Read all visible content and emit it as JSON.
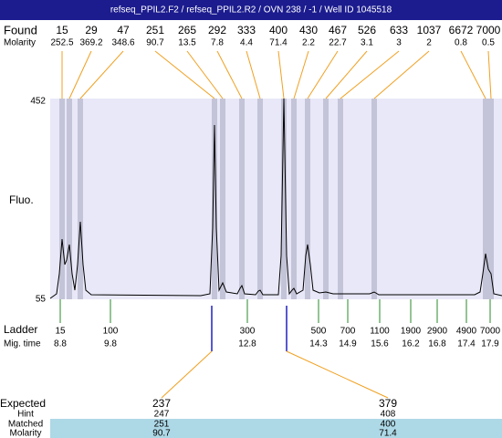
{
  "title": "refseq_PPIL2.F2 / refseq_PPIL2.R2 / OVN 238 / -1 / Well ID 1045518",
  "found": {
    "label": "Found",
    "values": [
      15,
      29,
      47,
      251,
      265,
      292,
      333,
      400,
      430,
      467,
      526,
      633,
      1037,
      6672,
      7000
    ],
    "molarity_label": "Molarity",
    "molarity": [
      252.5,
      369.2,
      348.6,
      90.7,
      13.5,
      7.8,
      4.4,
      71.4,
      2.2,
      22.7,
      3.1,
      3,
      2,
      0.8,
      0.5
    ]
  },
  "plot": {
    "y_label": "Fluo.",
    "y_top": 452,
    "y_bottom": 55
  },
  "ladder": {
    "label": "Ladder",
    "values": [
      15,
      100,
      300,
      500,
      700,
      1100,
      1900,
      2900,
      4900,
      7000
    ],
    "mig_label": "Mig. time",
    "mig_times": [
      8.8,
      9.8,
      12.8,
      14.3,
      14.9,
      15.6,
      16.2,
      16.8,
      17.4,
      17.9
    ]
  },
  "expected": {
    "rows": [
      {
        "label": "Expected",
        "values": [
          237,
          379
        ]
      },
      {
        "label": "Hint",
        "values": [
          247,
          408
        ]
      },
      {
        "label": "Matched",
        "values": [
          251,
          400
        ]
      },
      {
        "label": "Molarity",
        "values": [
          90.7,
          71.4
        ]
      }
    ]
  }
}
